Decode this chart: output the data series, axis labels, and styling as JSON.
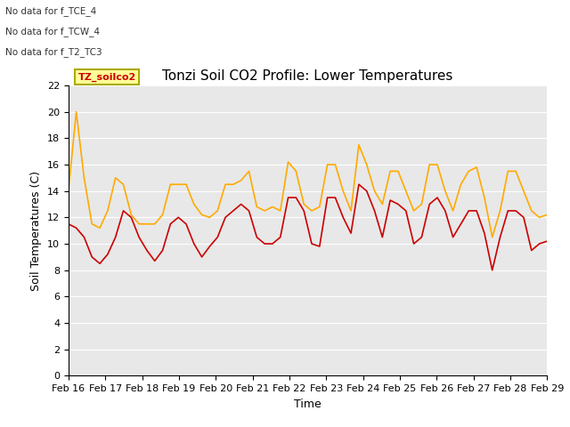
{
  "title": "Tonzi Soil CO2 Profile: Lower Temperatures",
  "ylabel": "Soil Temperatures (C)",
  "xlabel": "Time",
  "annotations": [
    "No data for f_TCE_4",
    "No data for f_TCW_4",
    "No data for f_T2_TC3"
  ],
  "legend_label": "TZ_soilco2",
  "ylim": [
    0,
    22
  ],
  "yticks": [
    0,
    2,
    4,
    6,
    8,
    10,
    12,
    14,
    16,
    18,
    20,
    22
  ],
  "xtick_labels": [
    "Feb 16",
    "Feb 17",
    "Feb 18",
    "Feb 19",
    "Feb 20",
    "Feb 21",
    "Feb 22",
    "Feb 23",
    "Feb 24",
    "Feb 25",
    "Feb 26",
    "Feb 27",
    "Feb 28",
    "Feb 29"
  ],
  "open_color": "#cc0000",
  "tree_color": "#ffaa00",
  "fig_bg": "#ffffff",
  "plot_bg": "#e8e8e8",
  "title_fontsize": 11,
  "tick_fontsize": 8,
  "open_data": [
    11.5,
    11.2,
    10.5,
    9.0,
    8.5,
    9.2,
    10.5,
    12.5,
    12.0,
    10.5,
    9.5,
    8.7,
    9.5,
    11.5,
    12.0,
    11.5,
    10.0,
    9.0,
    9.8,
    10.5,
    12.0,
    12.5,
    13.0,
    12.5,
    10.5,
    10.0,
    10.0,
    10.5,
    13.5,
    13.5,
    12.5,
    10.0,
    9.8,
    13.5,
    13.5,
    12.0,
    10.8,
    14.5,
    14.0,
    12.5,
    10.5,
    13.3,
    13.0,
    12.5,
    10.0,
    10.5,
    13.0,
    13.5,
    12.5,
    10.5,
    11.5,
    12.5,
    12.5,
    10.8,
    8.0,
    10.5,
    12.5,
    12.5,
    12.0,
    9.5,
    10.0,
    10.2
  ],
  "tree_data": [
    14.0,
    20.0,
    15.0,
    11.5,
    11.2,
    12.5,
    15.0,
    14.5,
    12.2,
    11.5,
    11.5,
    11.5,
    12.2,
    14.5,
    14.5,
    14.5,
    13.0,
    12.2,
    12.0,
    12.5,
    14.5,
    14.5,
    14.8,
    15.5,
    12.8,
    12.5,
    12.8,
    12.5,
    16.2,
    15.5,
    13.0,
    12.5,
    12.8,
    16.0,
    16.0,
    14.0,
    12.5,
    17.5,
    16.0,
    14.0,
    13.0,
    15.5,
    15.5,
    14.0,
    12.5,
    13.0,
    16.0,
    16.0,
    14.0,
    12.5,
    14.5,
    15.5,
    15.8,
    13.5,
    10.5,
    12.5,
    15.5,
    15.5,
    14.0,
    12.5,
    12.0,
    12.2
  ]
}
